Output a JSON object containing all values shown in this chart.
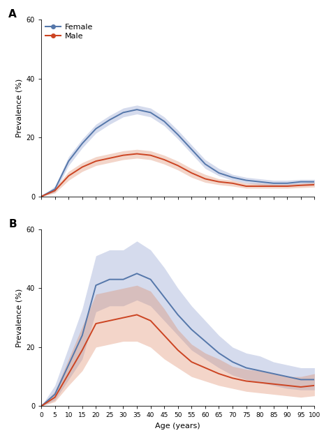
{
  "ages": [
    0,
    5,
    10,
    15,
    20,
    25,
    30,
    35,
    40,
    45,
    50,
    55,
    60,
    65,
    70,
    75,
    80,
    85,
    90,
    95,
    100
  ],
  "panel_A": {
    "female_mean": [
      0,
      2.5,
      12,
      18,
      23,
      26,
      28.5,
      29.5,
      28.5,
      25.5,
      21,
      16,
      11,
      8,
      6.5,
      5.5,
      5,
      4.5,
      4.5,
      5,
      5
    ],
    "female_lo": [
      0,
      1.5,
      10.5,
      16.5,
      21.5,
      24.5,
      27,
      28,
      27,
      24,
      19.5,
      14.5,
      9.5,
      7,
      5.5,
      4.5,
      4,
      3.8,
      3.8,
      4.2,
      4.2
    ],
    "female_hi": [
      0,
      3.5,
      13.5,
      19.5,
      24.5,
      27.5,
      30,
      31,
      30,
      27,
      22.5,
      17.5,
      12.5,
      9.5,
      7.5,
      6.5,
      6,
      5.5,
      5.5,
      5.8,
      5.8
    ],
    "male_mean": [
      0,
      2,
      7,
      10,
      12,
      13,
      14,
      14.5,
      14,
      12.5,
      10.5,
      8,
      6,
      5,
      4.5,
      3.5,
      3.5,
      3.5,
      3.5,
      3.8,
      4
    ],
    "male_lo": [
      0,
      1.2,
      5.5,
      8.5,
      10.5,
      11.5,
      12.5,
      13,
      12.5,
      11,
      9,
      6.5,
      4.8,
      4,
      3.5,
      2.8,
      2.8,
      2.8,
      2.8,
      3.0,
      3.2
    ],
    "male_hi": [
      0,
      2.8,
      8.5,
      11.5,
      13.5,
      14.5,
      15.5,
      16,
      15.5,
      14,
      12,
      9.5,
      7.5,
      6,
      5.5,
      4.5,
      4.5,
      4.2,
      4.2,
      4.5,
      4.8
    ]
  },
  "panel_B": {
    "female_mean": [
      0,
      4,
      14,
      24,
      41,
      43,
      43,
      45,
      43,
      37,
      31,
      26,
      22,
      18,
      15,
      13,
      12,
      11,
      10,
      9,
      9
    ],
    "female_lo": [
      0,
      2,
      9,
      16,
      32,
      34,
      34,
      36,
      34,
      29,
      24,
      19,
      16,
      13,
      10.5,
      9,
      8,
      7,
      6,
      5.5,
      5.5
    ],
    "female_hi": [
      0,
      7,
      20,
      33,
      51,
      53,
      53,
      56,
      53,
      47,
      40,
      34,
      29,
      24,
      20,
      18,
      17,
      15,
      14,
      13,
      13
    ],
    "male_mean": [
      0,
      3,
      11,
      19,
      28,
      29,
      30,
      31,
      29,
      24,
      19,
      15,
      13,
      11,
      9.5,
      8.5,
      8,
      7.5,
      7,
      6.5,
      7
    ],
    "male_lo": [
      0,
      1.5,
      7,
      12,
      20,
      21,
      22,
      22,
      20,
      16,
      13,
      10,
      8.5,
      7,
      6,
      5,
      4.5,
      4,
      3.5,
      3,
      3.5
    ],
    "male_hi": [
      0,
      5,
      16,
      27,
      38,
      39,
      40,
      41,
      39,
      33,
      26,
      21,
      18,
      16,
      13.5,
      12.5,
      12,
      11,
      10,
      10,
      11
    ]
  },
  "female_color": "#5577aa",
  "male_color": "#cc4422",
  "female_fill_color": "#8899cc",
  "female_fill_alpha": 0.35,
  "male_fill_color": "#dd8866",
  "male_fill_alpha": 0.35,
  "ylim": [
    0,
    60
  ],
  "yticks": [
    0,
    20,
    40,
    60
  ],
  "xticks": [
    0,
    5,
    10,
    15,
    20,
    25,
    30,
    35,
    40,
    45,
    50,
    55,
    60,
    65,
    70,
    75,
    80,
    85,
    90,
    95,
    100
  ],
  "xlabel": "Age (years)",
  "ylabel": "Prevalence (%)",
  "label_A": "A",
  "label_B": "B",
  "legend_female": "Female",
  "legend_male": "Male",
  "bg_color": "#ffffff"
}
